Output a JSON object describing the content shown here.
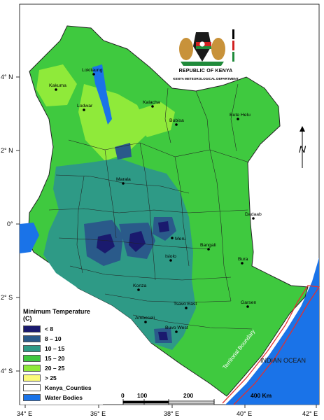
{
  "map": {
    "latitude_labels": [
      "4° N",
      "2° N",
      "0°",
      "2° S",
      "4° S"
    ],
    "longitude_labels": [
      "34° E",
      "36° E",
      "38° E",
      "40° E",
      "42° E"
    ],
    "towns": [
      "Lokitaung",
      "Kakuma",
      "Lodwar",
      "Kalacha",
      "Bubisa",
      "Bute Helu",
      "Marala",
      "Dadaab",
      "Bangali",
      "Meru",
      "Isiolo",
      "Bura",
      "Garsen",
      "Konza",
      "Tsavo East",
      "Amboseli",
      "Buvo West"
    ],
    "ocean_label": "INDIAN OCEAN",
    "boundary_label": "Territorial Boundary",
    "north_arrow_letter": "N",
    "colors": {
      "below_8": "#1a1a6e",
      "8_10": "#2a5a8a",
      "10_15": "#2e9a86",
      "15_20": "#3fc93f",
      "20_25": "#8fea3a",
      "above_25": "#fbfb7a",
      "counties": "#ffffff",
      "water": "#1a73e8",
      "boundary": "#e03030"
    }
  },
  "legend": {
    "title": "Minimum Temperature (C)",
    "items": [
      {
        "label": "< 8",
        "color": "#1a1a6e"
      },
      {
        "label": "8 – 10",
        "color": "#2a5a8a"
      },
      {
        "label": "10 – 15",
        "color": "#2e9a86"
      },
      {
        "label": "15 – 20",
        "color": "#3fc93f"
      },
      {
        "label": "20 – 25",
        "color": "#8fea3a"
      },
      {
        "label": "> 25",
        "color": "#fbfb7a"
      },
      {
        "label": "Kenya_Counties",
        "color": "#ffffff"
      },
      {
        "label": "Water Bodies",
        "color": "#1a73e8"
      }
    ]
  },
  "scalebar": {
    "labels": [
      "0",
      "100",
      "200",
      "400 Km"
    ]
  },
  "header": {
    "org_name": "REPUBLIC OF KENYA",
    "department": "KENYA METEOROLOGICAL DEPARTMENT"
  }
}
